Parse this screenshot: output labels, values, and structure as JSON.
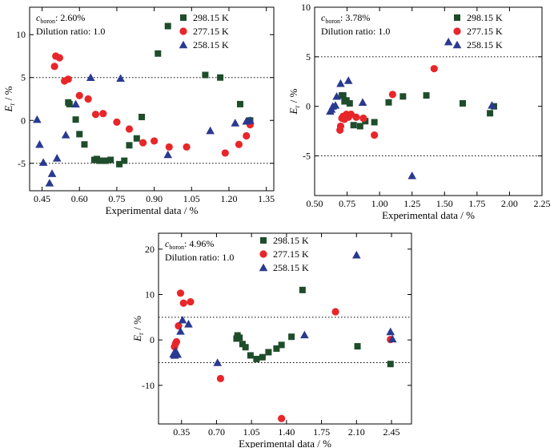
{
  "chart_data": [
    {
      "type": "scatter",
      "annotation": {
        "c_label": "c",
        "c_sub": "boron",
        "c_value": ": 2.60%",
        "dilution": "Dilution ratio: 1.0"
      },
      "xlabel": "Experimental data / %",
      "ylabel": {
        "main": "E",
        "sub": "r",
        "unit": " / %"
      },
      "xlim": [
        0.4,
        1.38
      ],
      "ylim": [
        -8.2,
        13.2
      ],
      "xticks": [
        0.45,
        0.6,
        0.75,
        0.9,
        1.05,
        1.2,
        1.35
      ],
      "xtick_labels": [
        "0.45",
        "0.60",
        "0.75",
        "0.90",
        "1.05",
        "1.20",
        "1.35"
      ],
      "yticks": [
        -5,
        0,
        5,
        10
      ],
      "ytick_labels": [
        "-5",
        "0",
        "5",
        "10"
      ],
      "ref_lines": [
        5,
        -5
      ],
      "legend_position": "top-right",
      "series": [
        {
          "name": "298.15 K",
          "marker": "square",
          "color": "#1e4d2b",
          "x": [
            0.555,
            0.56,
            0.585,
            0.6,
            0.62,
            0.66,
            0.67,
            0.68,
            0.695,
            0.705,
            0.725,
            0.76,
            0.78,
            0.8,
            0.83,
            0.85,
            0.915,
            0.955,
            1.105,
            1.165,
            1.245,
            1.285
          ],
          "y": [
            2.1,
            1.9,
            0.1,
            -1.6,
            -2.8,
            -4.6,
            -4.5,
            -4.7,
            -4.7,
            -4.7,
            -4.6,
            -5.1,
            -4.7,
            -2.9,
            -2.1,
            0.4,
            7.8,
            11.0,
            5.3,
            5.0,
            1.9,
            0.0
          ]
        },
        {
          "name": "277.15 K",
          "marker": "circle",
          "color": "#e8262a",
          "x": [
            0.5,
            0.505,
            0.52,
            0.54,
            0.555,
            0.6,
            0.635,
            0.665,
            0.695,
            0.75,
            0.8,
            0.855,
            0.9,
            0.96,
            1.03,
            1.185,
            1.24,
            1.27,
            1.285
          ],
          "y": [
            6.3,
            7.5,
            7.3,
            4.6,
            4.8,
            2.9,
            2.5,
            0.7,
            0.8,
            -0.2,
            -1.0,
            -2.6,
            -2.4,
            -3.1,
            -3.1,
            -3.8,
            -2.8,
            -1.8,
            -0.5
          ]
        },
        {
          "name": "258.15 K",
          "marker": "triangle",
          "color": "#2a3990",
          "x": [
            0.43,
            0.44,
            0.455,
            0.48,
            0.49,
            0.51,
            0.545,
            0.585,
            0.645,
            0.765,
            0.955,
            1.125,
            1.225,
            1.27,
            1.285
          ],
          "y": [
            0.1,
            -2.8,
            -4.9,
            -7.3,
            -6.2,
            -4.4,
            -1.7,
            1.9,
            5.0,
            4.9,
            -4.0,
            -1.2,
            -0.3,
            -0.1,
            0.0
          ]
        }
      ]
    },
    {
      "type": "scatter",
      "annotation": {
        "c_label": "c",
        "c_sub": "boron",
        "c_value": ": 3.78%",
        "dilution": "Dilution ratio: 1.0"
      },
      "xlabel": "Experimental data / %",
      "ylabel": {
        "main": "E",
        "sub": "r",
        "unit": " / %"
      },
      "xlim": [
        0.5,
        2.25
      ],
      "ylim": [
        -9,
        10
      ],
      "xticks": [
        0.5,
        0.75,
        1.0,
        1.25,
        1.5,
        1.75,
        2.0,
        2.25
      ],
      "xtick_labels": [
        "0.50",
        "0.75",
        "1.00",
        "1.25",
        "1.50",
        "1.75",
        "2.00",
        "2.25"
      ],
      "yticks": [
        -5,
        0,
        5,
        10
      ],
      "ytick_labels": [
        "-5",
        "0",
        "5",
        "10"
      ],
      "ref_lines": [
        5,
        -5
      ],
      "legend_position": "top-right",
      "series": [
        {
          "name": "298.15 K",
          "marker": "square",
          "color": "#1e4d2b",
          "x": [
            0.71,
            0.72,
            0.73,
            0.745,
            0.77,
            0.8,
            0.85,
            0.89,
            0.96,
            1.07,
            1.18,
            1.36,
            1.64,
            1.85,
            1.88
          ],
          "y": [
            1.1,
            1.1,
            0.5,
            0.6,
            0.3,
            -1.9,
            -2.0,
            -1.5,
            -1.6,
            0.4,
            1.0,
            1.1,
            0.3,
            -0.7,
            0.0
          ]
        },
        {
          "name": "277.15 K",
          "marker": "circle",
          "color": "#e8262a",
          "x": [
            0.695,
            0.7,
            0.71,
            0.72,
            0.73,
            0.745,
            0.76,
            0.78,
            0.82,
            0.875,
            0.96,
            1.1,
            1.42
          ],
          "y": [
            -2.4,
            -2.0,
            -1.2,
            -1.0,
            -1.3,
            -0.8,
            -1.1,
            -0.8,
            -1.1,
            -1.2,
            -2.9,
            1.2,
            3.8
          ]
        },
        {
          "name": "258.15 K",
          "marker": "triangle",
          "color": "#2a3990",
          "x": [
            0.62,
            0.63,
            0.64,
            0.66,
            0.67,
            0.7,
            0.76,
            0.87,
            1.25,
            1.53,
            1.865
          ],
          "y": [
            -0.5,
            -0.3,
            0.0,
            0.1,
            1.0,
            2.3,
            2.6,
            0.4,
            -7.0,
            6.5,
            0.1
          ]
        }
      ]
    },
    {
      "type": "scatter",
      "annotation": {
        "c_label": "c",
        "c_sub": "boron",
        "c_value": ": 4.96%",
        "dilution": "Dilution ratio: 1.0"
      },
      "xlabel": "Experimental data / %",
      "ylabel": {
        "main": "E",
        "sub": "r",
        "unit": " / %"
      },
      "xlim": [
        0.12,
        2.65
      ],
      "ylim": [
        -18.5,
        23.5
      ],
      "xticks": [
        0.35,
        0.7,
        1.05,
        1.4,
        1.75,
        2.1,
        2.45
      ],
      "xtick_labels": [
        "0.35",
        "0.70",
        "1.05",
        "1.40",
        "1.75",
        "2.10",
        "2.45"
      ],
      "yticks": [
        -10,
        0,
        10,
        20
      ],
      "ytick_labels": [
        "-10",
        "0",
        "10",
        "20"
      ],
      "ref_lines": [
        5,
        -5
      ],
      "legend_position": "top-center",
      "series": [
        {
          "name": "298.15 K",
          "marker": "square",
          "color": "#1e4d2b",
          "x": [
            0.9,
            0.91,
            0.93,
            0.96,
            0.99,
            1.04,
            1.1,
            1.16,
            1.22,
            1.3,
            1.35,
            1.45,
            1.56,
            2.11,
            2.44
          ],
          "y": [
            0.3,
            1.0,
            0.5,
            -0.9,
            -1.6,
            -3.4,
            -4.2,
            -3.8,
            -2.7,
            -1.9,
            -1.1,
            0.7,
            11.0,
            -1.4,
            -5.3
          ]
        },
        {
          "name": "277.15 K",
          "marker": "circle",
          "color": "#e8262a",
          "x": [
            0.28,
            0.29,
            0.3,
            0.32,
            0.34,
            0.37,
            0.44,
            0.74,
            1.35,
            1.89,
            2.44
          ],
          "y": [
            -1.5,
            -0.8,
            -0.4,
            3.1,
            10.3,
            8.1,
            8.4,
            -8.5,
            -17.3,
            6.2,
            0.1
          ]
        },
        {
          "name": "258.15 K",
          "marker": "triangle",
          "color": "#2a3990",
          "x": [
            0.27,
            0.28,
            0.29,
            0.3,
            0.31,
            0.34,
            0.36,
            0.42,
            0.71,
            1.58,
            2.1,
            2.44,
            2.46
          ],
          "y": [
            -3.1,
            -3.4,
            -2.5,
            -2.8,
            -3.2,
            1.9,
            4.4,
            3.5,
            -5.0,
            1.1,
            18.7,
            1.8,
            0.2
          ]
        }
      ]
    }
  ]
}
